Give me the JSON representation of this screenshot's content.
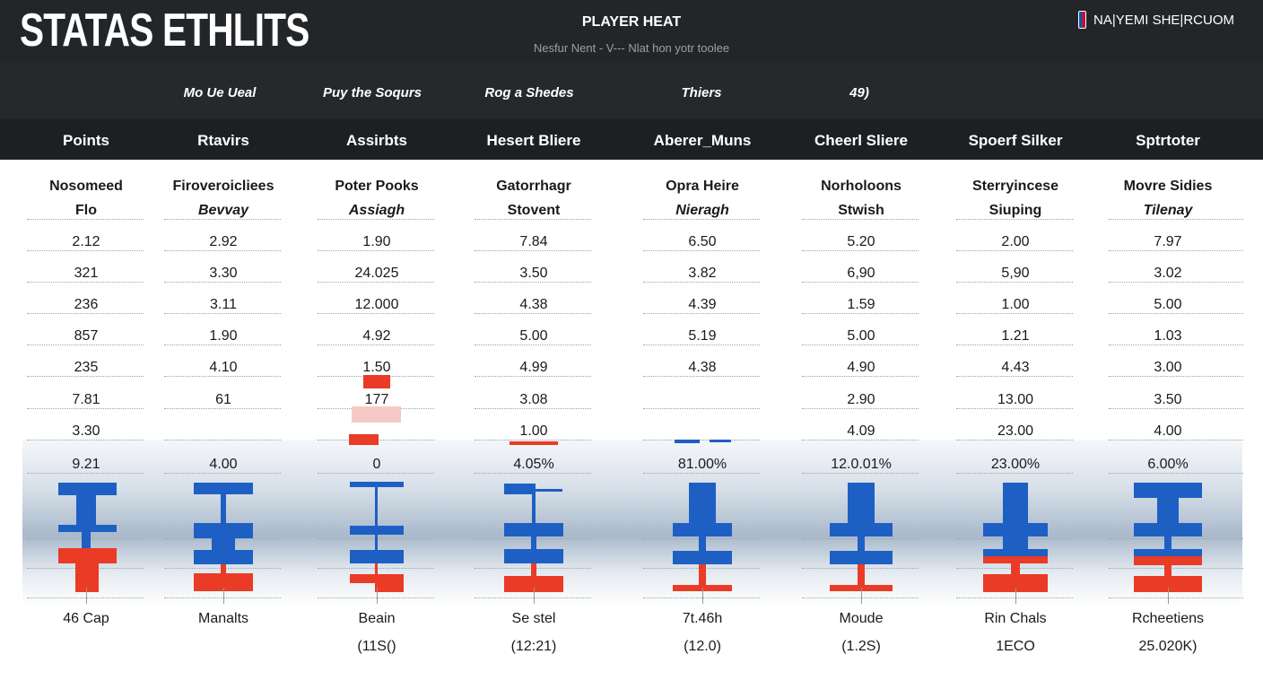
{
  "header": {
    "brand": "STATAS ETHLITS",
    "title": "PLAYER HEAT",
    "subtitle": "Nesfur Nent - V--- Nlat hon yotr toolee",
    "account": "NA|YEMI SHE|RCUOM"
  },
  "filters": [
    "Mo Ue Ueal",
    "Puy the Soqurs",
    "Rog a Shedes",
    "Thiers",
    "49)"
  ],
  "columns": [
    "Points",
    "Rtavirs",
    "Assirbts",
    "Hesert Bliere",
    "Aberer_Muns",
    "Cheerl Sliere",
    "Spoerf Silker",
    "Sptrtoter"
  ],
  "players": [
    {
      "name": "Nosomeed",
      "sub": "Flo",
      "values": [
        "2.12",
        "321",
        "236",
        "857",
        "235",
        "7.81",
        "3.30",
        "9.21"
      ],
      "label": "46 Cap",
      "note": ""
    },
    {
      "name": "Firoveroicliees",
      "sub": "Bevvay",
      "values": [
        "2.92",
        "3.30",
        "3.11",
        "1.90",
        "4.10",
        "61",
        "",
        "4.00"
      ],
      "label": "Manalts",
      "note": ""
    },
    {
      "name": "Poter Pooks",
      "sub": "Assiagh",
      "values": [
        "1.90",
        "24.025",
        "12.000",
        "4.92",
        "1.50",
        "177",
        "",
        "0"
      ],
      "label": "Beain",
      "note": "(11S()"
    },
    {
      "name": "Gatorrhagr",
      "sub": "Stovent",
      "values": [
        "7.84",
        "3.50",
        "4.38",
        "5.00",
        "4.99",
        "3.08",
        "1.00",
        "4.05%"
      ],
      "label": "Se stel",
      "note": "(12:21)"
    },
    {
      "name": "Opra Heire",
      "sub": "Nieragh",
      "values": [
        "6.50",
        "3.82",
        "4.39",
        "5.19",
        "4.38",
        "",
        "",
        "81.00%"
      ],
      "label": "7t.46h",
      "note": "(12.0)"
    },
    {
      "name": "Norholoons",
      "sub": "Stwish",
      "values": [
        "5.20",
        "6,90",
        "1.59",
        "5.00",
        "4.90",
        "2.90",
        "4.09",
        "12.0.01%"
      ],
      "label": "Moude",
      "note": "(1.2S)"
    },
    {
      "name": "Sterryincese",
      "sub": "Siuping",
      "values": [
        "2.00",
        "5,90",
        "1.00",
        "1.21",
        "4.43",
        "13.00",
        "23.00",
        "23.00%"
      ],
      "label": "Rin Chals",
      "note": "1ECO"
    },
    {
      "name": "Movre Sidies",
      "sub": "Tilenay",
      "values": [
        "7.97",
        "3.02",
        "5.00",
        "1.03",
        "3.00",
        "3.50",
        "4.00",
        "6.00%"
      ],
      "label": "Rcheetiens",
      "note": "25.020K)"
    }
  ],
  "colors": {
    "blue": "#1e5fc4",
    "red": "#ea3b26",
    "dark": "#222629"
  }
}
